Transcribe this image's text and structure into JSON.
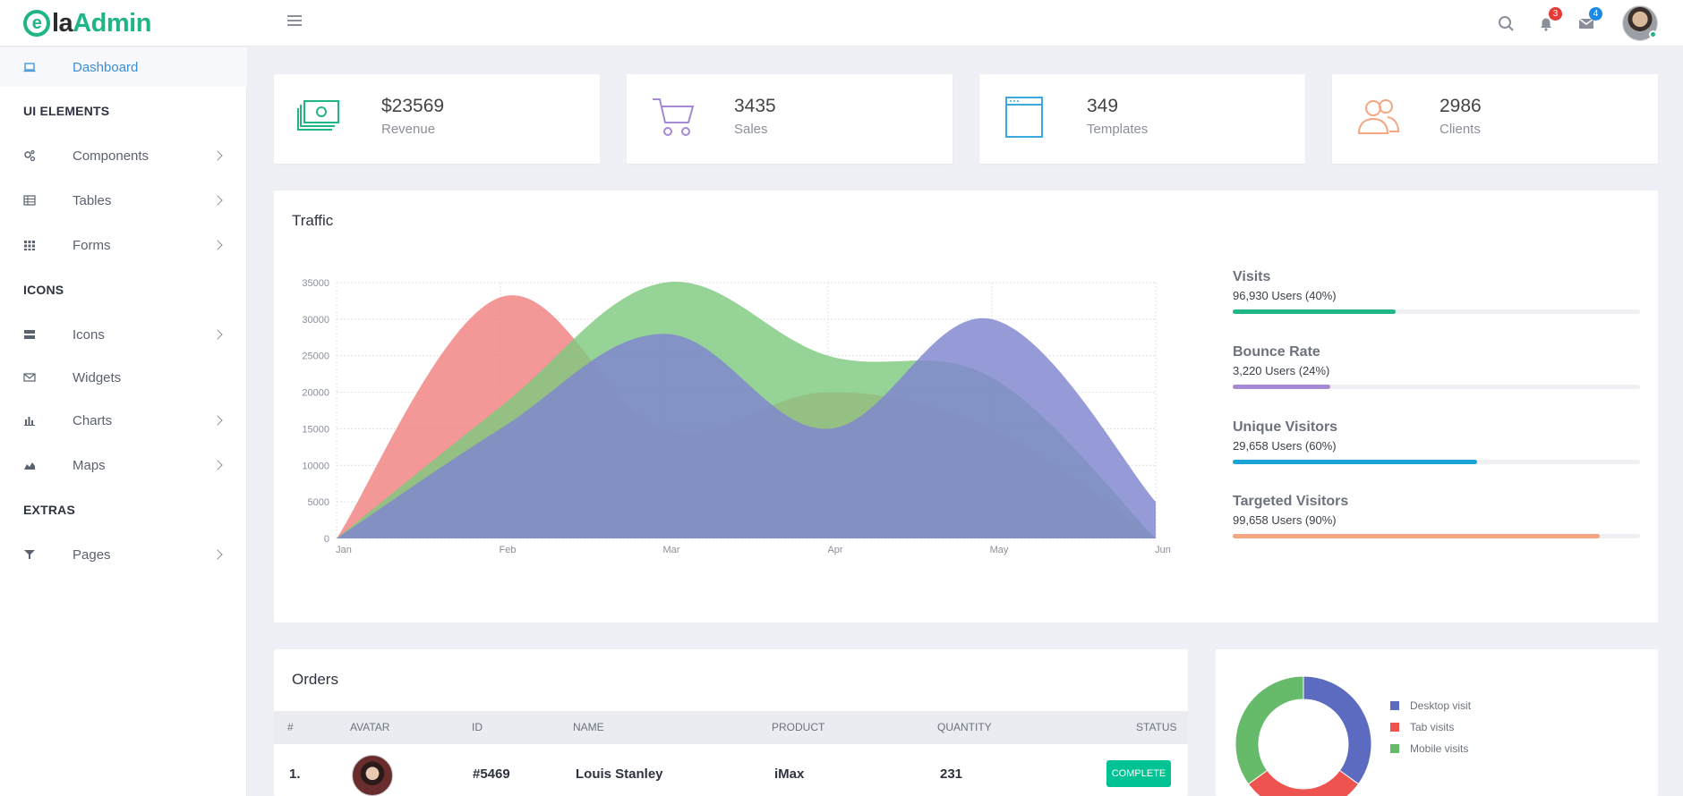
{
  "header": {
    "logo_mark": "e",
    "logo_ela": "la",
    "logo_admin": "Admin",
    "notifications_count": "3",
    "messages_count": "4"
  },
  "sidebar": {
    "dashboard": "Dashboard",
    "section_ui": "UI ELEMENTS",
    "components": "Components",
    "tables": "Tables",
    "forms": "Forms",
    "section_icons": "ICONS",
    "icons": "Icons",
    "widgets": "Widgets",
    "charts": "Charts",
    "maps": "Maps",
    "section_extras": "EXTRAS",
    "pages": "Pages"
  },
  "stats": [
    {
      "value": "$23569",
      "label": "Revenue",
      "icon": "money-icon",
      "color": "#1fb587"
    },
    {
      "value": "3435",
      "label": "Sales",
      "icon": "cart-icon",
      "color": "#a48ad6"
    },
    {
      "value": "349",
      "label": "Templates",
      "icon": "browser-window-icon",
      "color": "#3ba9e0"
    },
    {
      "value": "2986",
      "label": "Clients",
      "icon": "users-icon",
      "color": "#f4a582"
    }
  ],
  "traffic": {
    "title": "Traffic",
    "chart_data": {
      "type": "area",
      "categories": [
        "Jan",
        "Feb",
        "Mar",
        "Apr",
        "May",
        "Jun"
      ],
      "ylim": [
        0,
        35000
      ],
      "yticks": [
        "0",
        "5000",
        "10000",
        "15000",
        "20000",
        "25000",
        "30000",
        "35000"
      ],
      "series": [
        {
          "values": [
            0,
            33000,
            15000,
            20000,
            15000,
            0
          ],
          "color": "#f08080"
        },
        {
          "values": [
            0,
            18000,
            35000,
            25000,
            22000,
            0
          ],
          "color": "#7fc97f"
        },
        {
          "values": [
            0,
            15000,
            28000,
            15000,
            30000,
            5000
          ],
          "color": "#7f85cf"
        }
      ]
    },
    "progress": [
      {
        "title": "Visits",
        "users": "96,930 Users (40%)",
        "percent": 40,
        "color": "#1fb587"
      },
      {
        "title": "Bounce Rate",
        "users": "3,220 Users (24%)",
        "percent": 24,
        "color": "#a48ad6"
      },
      {
        "title": "Unique Visitors",
        "users": "29,658 Users (60%)",
        "percent": 60,
        "color": "#1aa3d6"
      },
      {
        "title": "Targeted Visitors",
        "users": "99,658 Users (90%)",
        "percent": 90,
        "color": "#f4a582"
      }
    ]
  },
  "orders": {
    "title": "Orders",
    "columns": [
      "#",
      "AVATAR",
      "ID",
      "NAME",
      "PRODUCT",
      "QUANTITY",
      "STATUS"
    ],
    "rows": [
      {
        "num": "1.",
        "id": "#5469",
        "name": "Louis Stanley",
        "product": "iMax",
        "quantity": "231",
        "status": "COMPLETE"
      }
    ]
  },
  "donut": {
    "chart_data": {
      "type": "pie",
      "categories": [
        "Desktop visit",
        "Tab visits",
        "Mobile visits"
      ],
      "values": [
        35,
        30,
        35
      ],
      "colors": [
        "#5c6bc0",
        "#ef5350",
        "#66bb6a"
      ]
    }
  }
}
